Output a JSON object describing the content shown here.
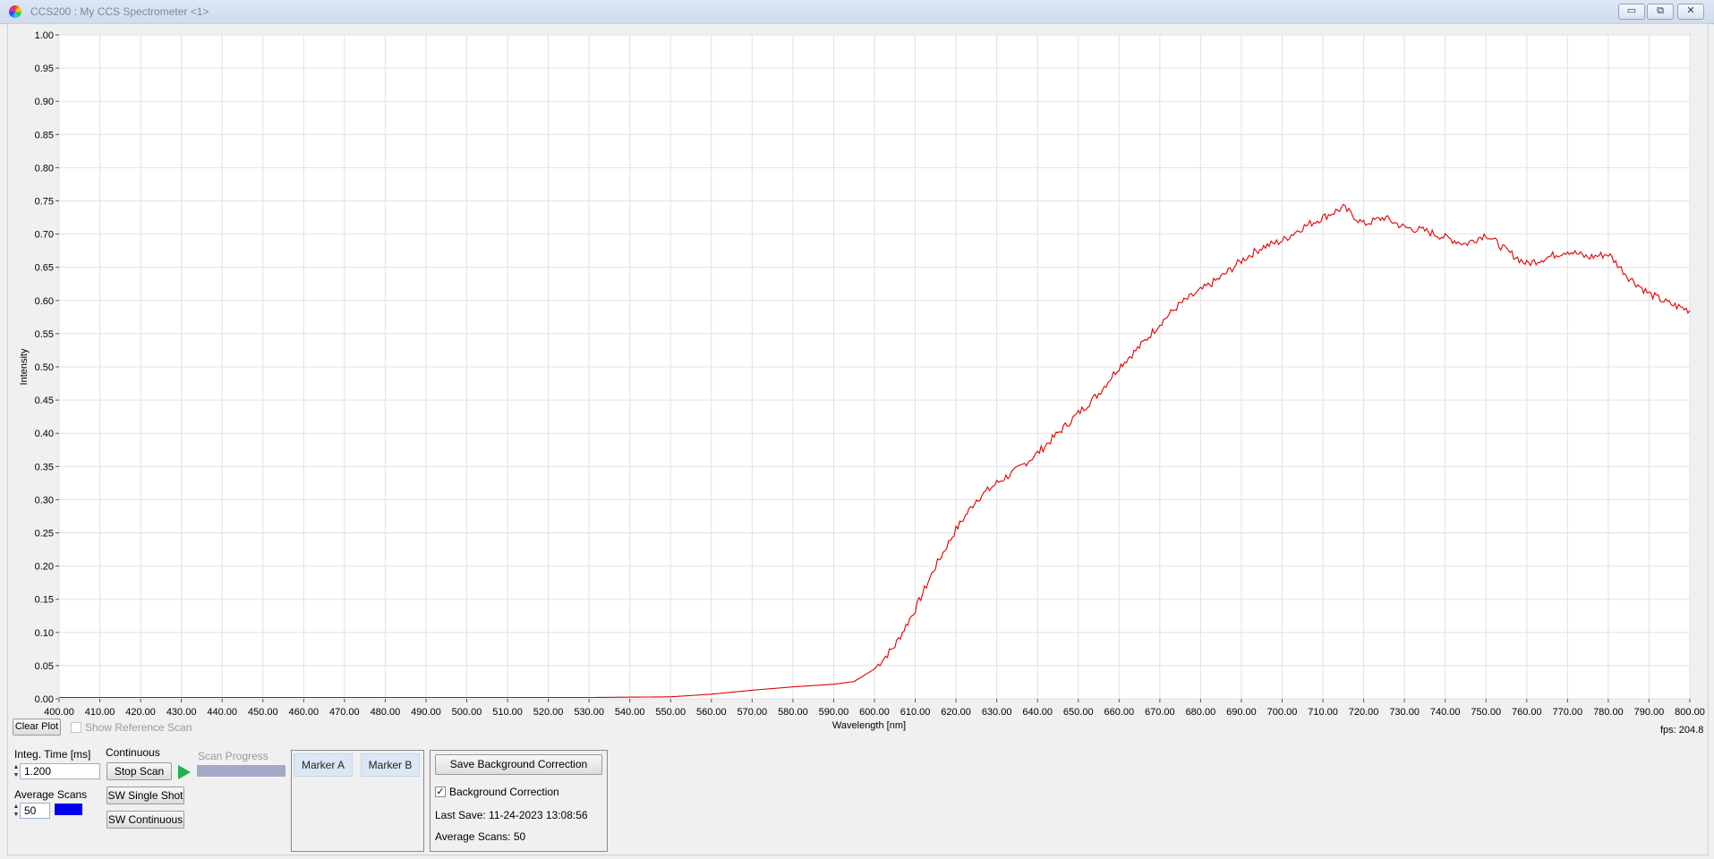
{
  "window": {
    "title": "CCS200 : My CCS Spectrometer <1>",
    "minimize_glyph": "▭",
    "restore_glyph": "⧉",
    "close_glyph": "✕"
  },
  "chart_data": {
    "type": "line",
    "xlabel": "Wavelength [nm]",
    "ylabel": "Intensity",
    "xlim": [
      400,
      800
    ],
    "ylim": [
      0,
      1
    ],
    "x_ticks": [
      "400.00",
      "410.00",
      "420.00",
      "430.00",
      "440.00",
      "450.00",
      "460.00",
      "470.00",
      "480.00",
      "490.00",
      "500.00",
      "510.00",
      "520.00",
      "530.00",
      "540.00",
      "550.00",
      "560.00",
      "570.00",
      "580.00",
      "590.00",
      "600.00",
      "610.00",
      "620.00",
      "630.00",
      "640.00",
      "650.00",
      "660.00",
      "670.00",
      "680.00",
      "690.00",
      "700.00",
      "710.00",
      "720.00",
      "730.00",
      "740.00",
      "750.00",
      "760.00",
      "770.00",
      "780.00",
      "790.00",
      "800.00"
    ],
    "y_ticks": [
      "0.00",
      "0.05",
      "0.10",
      "0.15",
      "0.20",
      "0.25",
      "0.30",
      "0.35",
      "0.40",
      "0.45",
      "0.50",
      "0.55",
      "0.60",
      "0.65",
      "0.70",
      "0.75",
      "0.80",
      "0.85",
      "0.90",
      "0.95",
      "1.00"
    ],
    "grid": true,
    "series": [
      {
        "color": "#e00000",
        "x": [
          400,
          450,
          500,
          530,
          550,
          560,
          570,
          580,
          590,
          595,
          600,
          605,
          610,
          615,
          620,
          625,
          630,
          635,
          640,
          645,
          650,
          655,
          660,
          665,
          670,
          675,
          680,
          685,
          690,
          695,
          700,
          705,
          710,
          715,
          720,
          725,
          730,
          735,
          740,
          745,
          750,
          755,
          760,
          765,
          770,
          775,
          780,
          785,
          790,
          795,
          800
        ],
        "y": [
          0.002,
          0.002,
          0.002,
          0.002,
          0.003,
          0.007,
          0.013,
          0.018,
          0.022,
          0.026,
          0.045,
          0.08,
          0.135,
          0.2,
          0.255,
          0.3,
          0.325,
          0.345,
          0.37,
          0.4,
          0.43,
          0.46,
          0.5,
          0.53,
          0.565,
          0.595,
          0.615,
          0.635,
          0.66,
          0.68,
          0.69,
          0.71,
          0.725,
          0.74,
          0.715,
          0.725,
          0.71,
          0.705,
          0.695,
          0.685,
          0.7,
          0.675,
          0.655,
          0.665,
          0.675,
          0.665,
          0.67,
          0.635,
          0.61,
          0.595,
          0.585
        ]
      }
    ]
  },
  "plot_controls": {
    "clear_plot": "Clear Plot",
    "show_reference_scan": "Show Reference Scan",
    "fps": "fps: 204.8"
  },
  "controls": {
    "integ_time_label": "Integ. Time [ms]",
    "integ_time_value": "1.200",
    "average_scans_label": "Average Scans",
    "average_scans_value": "50",
    "color_swatch": "#0000ee",
    "continuous_label": "Continuous",
    "stop_scan": "Stop Scan",
    "run_icon": "play-icon",
    "sw_single_shot": "SW Single Shot",
    "sw_continuous": "SW Continuous",
    "scan_progress_label": "Scan Progress",
    "scan_progress_value": 0
  },
  "markers": {
    "marker_a": "Marker A",
    "marker_b": "Marker B"
  },
  "background": {
    "save_button": "Save Background Correction",
    "correction_label": "Background Correction",
    "correction_checked": true,
    "check_glyph": "✓",
    "last_save": "Last Save: 11-24-2023 13:08:56",
    "average_scans": "Average Scans: 50"
  }
}
